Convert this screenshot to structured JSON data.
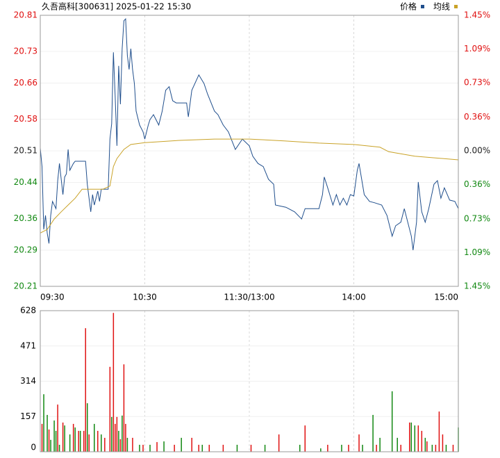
{
  "chart_data": [
    {
      "type": "line",
      "title": "久吾高科[300631] 2025-01-22 15:30",
      "xlim": [
        0,
        240
      ],
      "xticks": [
        {
          "value": 0,
          "label": "09:30"
        },
        {
          "value": 60,
          "label": "10:30"
        },
        {
          "value": 120,
          "label": "11:30/13:00"
        },
        {
          "value": 180,
          "label": "14:00"
        },
        {
          "value": 240,
          "label": "15:00"
        }
      ],
      "ylim": [
        20.21,
        20.81
      ],
      "yticks": [
        20.81,
        20.73,
        20.66,
        20.58,
        20.51,
        20.44,
        20.36,
        20.29,
        20.21
      ],
      "y2lim": [
        -1.45,
        1.45
      ],
      "y2ticks": [
        {
          "value": 1.45,
          "label": "1.45%"
        },
        {
          "value": 1.09,
          "label": "1.09%"
        },
        {
          "value": 0.73,
          "label": "0.73%"
        },
        {
          "value": 0.36,
          "label": "0.36%"
        },
        {
          "value": 0,
          "label": "0.00%"
        },
        {
          "value": -0.36,
          "label": "0.36%"
        },
        {
          "value": -0.73,
          "label": "0.73%"
        },
        {
          "value": -1.09,
          "label": "1.09%"
        },
        {
          "value": -1.45,
          "label": "1.45%"
        }
      ],
      "series": [
        {
          "name": "价格",
          "color": "#1f4e8c",
          "x": [
            0,
            1,
            2,
            3,
            4,
            5,
            6,
            7,
            9,
            10,
            11,
            13,
            14,
            15,
            16,
            17,
            19,
            20,
            26,
            27,
            29,
            30,
            31,
            33,
            34,
            35,
            39,
            40,
            41,
            42,
            43,
            44,
            45,
            46,
            47,
            48,
            49,
            50,
            51,
            52,
            53,
            54,
            55,
            57,
            59,
            60,
            62,
            63,
            65,
            68,
            70,
            72,
            74,
            76,
            78,
            84,
            85,
            87,
            91,
            94,
            96,
            100,
            102,
            105,
            108,
            112,
            116,
            120,
            122,
            125,
            128,
            131,
            134,
            135,
            141,
            146,
            150,
            152,
            160,
            162,
            163,
            165,
            168,
            170,
            172,
            174,
            176,
            178,
            180,
            182,
            183,
            186,
            189,
            192,
            196,
            199,
            200,
            202,
            204,
            207,
            209,
            213,
            214,
            216,
            217,
            219,
            221,
            223,
            226,
            228,
            230,
            232,
            235,
            238,
            240
          ],
          "values": [
            20.516,
            20.475,
            20.336,
            20.367,
            20.328,
            20.305,
            20.367,
            20.398,
            20.382,
            20.444,
            20.482,
            20.413,
            20.452,
            20.459,
            20.513,
            20.467,
            20.482,
            20.487,
            20.487,
            20.436,
            20.375,
            20.413,
            20.39,
            20.421,
            20.398,
            20.425,
            20.425,
            20.536,
            20.57,
            20.728,
            20.628,
            20.521,
            20.698,
            20.613,
            20.736,
            20.798,
            20.802,
            20.721,
            20.69,
            20.736,
            20.69,
            20.659,
            20.598,
            20.567,
            20.552,
            20.536,
            20.567,
            20.579,
            20.59,
            20.567,
            20.598,
            20.644,
            20.652,
            20.621,
            20.616,
            20.616,
            20.585,
            20.644,
            20.678,
            20.659,
            20.636,
            20.598,
            20.59,
            20.567,
            20.552,
            20.513,
            20.536,
            20.521,
            20.498,
            20.482,
            20.475,
            20.447,
            20.436,
            20.39,
            20.385,
            20.375,
            20.359,
            20.382,
            20.382,
            20.413,
            20.452,
            20.428,
            20.39,
            20.413,
            20.39,
            20.405,
            20.39,
            20.413,
            20.41,
            20.467,
            20.482,
            20.413,
            20.398,
            20.395,
            20.39,
            20.367,
            20.352,
            20.321,
            20.344,
            20.352,
            20.382,
            20.321,
            20.29,
            20.352,
            20.441,
            20.375,
            20.352,
            20.382,
            20.436,
            20.444,
            20.405,
            20.428,
            20.401,
            20.398,
            20.382
          ]
        },
        {
          "name": "均线",
          "color": "#c9a227",
          "x": [
            0,
            4,
            8,
            12,
            16,
            20,
            24,
            36,
            40,
            42,
            44,
            48,
            52,
            60,
            80,
            100,
            120,
            140,
            160,
            180,
            195,
            200,
            215,
            240
          ],
          "values": [
            20.328,
            20.336,
            20.359,
            20.375,
            20.39,
            20.405,
            20.425,
            20.425,
            20.432,
            20.475,
            20.493,
            20.513,
            20.524,
            20.528,
            20.533,
            20.536,
            20.536,
            20.532,
            20.527,
            20.524,
            20.518,
            20.508,
            20.498,
            20.49
          ]
        }
      ]
    },
    {
      "type": "bar",
      "xlim": [
        0,
        240
      ],
      "ylim": [
        0,
        628
      ],
      "yticks": [
        0,
        157,
        314,
        471,
        628
      ],
      "series": [
        {
          "color": "#e01010",
          "x": [
            1,
            5,
            10,
            13,
            19,
            22,
            25,
            26,
            28,
            33,
            37,
            40,
            42,
            43,
            44,
            46,
            48,
            49,
            53,
            59,
            67,
            77,
            87,
            91,
            97,
            105,
            121,
            137,
            152,
            165,
            177,
            183,
            193,
            207,
            212,
            217,
            219,
            222,
            227,
            229,
            231,
            237
          ],
          "values": [
            124,
            99,
            210,
            130,
            124,
            93,
            93,
            550,
            77,
            93,
            62,
            378,
            618,
            124,
            155,
            56,
            389,
            124,
            62,
            31,
            43,
            31,
            62,
            31,
            31,
            31,
            31,
            77,
            117,
            31,
            31,
            77,
            31,
            31,
            130,
            117,
            93,
            46,
            31,
            179,
            77,
            31
          ]
        },
        {
          "color": "#118811",
          "x": [
            2,
            4,
            6,
            8,
            9,
            11,
            14,
            17,
            20,
            23,
            27,
            31,
            35,
            41,
            45,
            47,
            50,
            57,
            63,
            71,
            81,
            93,
            113,
            129,
            149,
            161,
            173,
            185,
            191,
            195,
            202,
            205,
            213,
            215,
            221,
            225,
            233,
            240
          ],
          "values": [
            256,
            164,
            53,
            139,
            93,
            31,
            117,
            77,
            108,
            93,
            216,
            124,
            77,
            155,
            93,
            161,
            62,
            31,
            31,
            46,
            62,
            31,
            31,
            31,
            31,
            15,
            31,
            31,
            164,
            62,
            269,
            62,
            130,
            117,
            62,
            31,
            31,
            108
          ]
        }
      ]
    }
  ]
}
